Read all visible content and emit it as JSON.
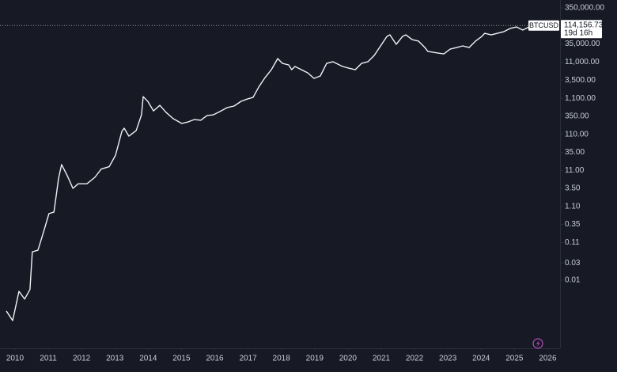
{
  "chart_data": {
    "type": "line",
    "x": [
      2009.74,
      2009.93,
      2010.12,
      2010.29,
      2010.45,
      2010.52,
      2010.69,
      2010.86,
      2011.02,
      2011.17,
      2011.31,
      2011.4,
      2011.57,
      2011.74,
      2011.9,
      2012.16,
      2012.4,
      2012.59,
      2012.83,
      2013.02,
      2013.21,
      2013.28,
      2013.42,
      2013.64,
      2013.8,
      2013.85,
      2013.99,
      2014.16,
      2014.35,
      2014.54,
      2014.75,
      2015.01,
      2015.2,
      2015.39,
      2015.58,
      2015.77,
      2015.96,
      2016.15,
      2016.37,
      2016.58,
      2016.79,
      2016.98,
      2017.15,
      2017.32,
      2017.51,
      2017.7,
      2017.89,
      2018.03,
      2018.22,
      2018.31,
      2018.41,
      2018.6,
      2018.79,
      2018.98,
      2019.17,
      2019.36,
      2019.55,
      2019.84,
      2020.02,
      2020.22,
      2020.41,
      2020.6,
      2020.79,
      2020.98,
      2021.17,
      2021.26,
      2021.45,
      2021.64,
      2021.74,
      2021.93,
      2022.12,
      2022.31,
      2022.4,
      2022.69,
      2022.88,
      2023.07,
      2023.26,
      2023.45,
      2023.64,
      2023.83,
      2024.02,
      2024.11,
      2024.3,
      2024.49,
      2024.68,
      2024.87,
      2025.06,
      2025.25,
      2025.44,
      2025.51
    ],
    "values": [
      0.0014,
      0.00076,
      0.0049,
      0.003,
      0.0055,
      0.061,
      0.068,
      0.22,
      0.7,
      0.77,
      6.7,
      16,
      7.9,
      3.5,
      4.7,
      4.7,
      7.1,
      12,
      14,
      29,
      133,
      163,
      98,
      140,
      383,
      1220,
      900,
      490,
      700,
      445,
      300,
      220,
      243,
      283,
      270,
      365,
      383,
      469,
      604,
      668,
      904,
      1050,
      1160,
      2240,
      4110,
      6810,
      13800,
      10200,
      9230,
      6810,
      8340,
      6810,
      5570,
      3910,
      4550,
      10200,
      11300,
      8340,
      7530,
      6810,
      10200,
      11300,
      16900,
      31000,
      56800,
      62800,
      34300,
      56800,
      62800,
      46400,
      42000,
      28000,
      21800,
      19700,
      18700,
      25300,
      28000,
      31000,
      28000,
      42000,
      56800,
      69500,
      62800,
      69500,
      76900,
      94200,
      104000,
      85100,
      104000,
      109000
    ],
    "color": "#f0f1f4",
    "log_y": true,
    "grid": false,
    "xlim": [
      2009.55,
      2026.37
    ],
    "xticks": [
      2010,
      2011,
      2012,
      2013,
      2014,
      2015,
      2016,
      2017,
      2018,
      2019,
      2020,
      2021,
      2022,
      2023,
      2024,
      2025,
      2026
    ],
    "ylim": [
      0.00013,
      580000
    ],
    "yticks": [
      {
        "value": 350000,
        "label": "350,000.00"
      },
      {
        "value": 35000,
        "label": "35,000.00"
      },
      {
        "value": 11000,
        "label": "11,000.00"
      },
      {
        "value": 3500,
        "label": "3,500.00"
      },
      {
        "value": 1100,
        "label": "1,100.00"
      },
      {
        "value": 350,
        "label": "350.00"
      },
      {
        "value": 110,
        "label": "110.00"
      },
      {
        "value": 35,
        "label": "35.00"
      },
      {
        "value": 11,
        "label": "11.00"
      },
      {
        "value": 3.5,
        "label": "3.50"
      },
      {
        "value": 1.1,
        "label": "1.10"
      },
      0.35,
      0.11,
      0.03,
      0.01
    ],
    "last_price": {
      "symbol": "BTCUSD",
      "value": 114156.73,
      "label": "114,156.73",
      "countdown": "19d 16h"
    }
  }
}
